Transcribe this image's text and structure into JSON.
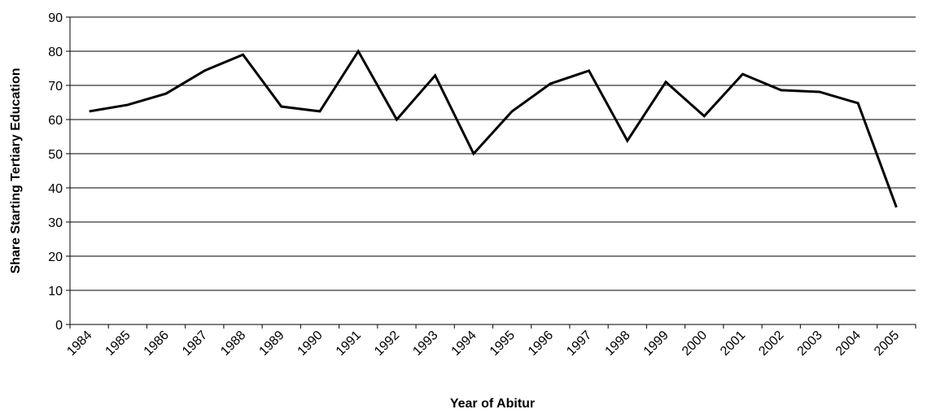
{
  "chart_data": {
    "type": "line",
    "x_label": "Year of Abitur",
    "y_label": "Share Starting Tertiary Education",
    "categories": [
      "1984",
      "1985",
      "1986",
      "1987",
      "1988",
      "1989",
      "1990",
      "1991",
      "1992",
      "1993",
      "1994",
      "1995",
      "1996",
      "1997",
      "1998",
      "1999",
      "2000",
      "2001",
      "2002",
      "2003",
      "2004",
      "2005"
    ],
    "series": [
      {
        "color": "#000000",
        "values": [
          62.4,
          64.3,
          67.6,
          74.3,
          79,
          63.8,
          62.4,
          80,
          60,
          72.9,
          50,
          62.4,
          70.5,
          74.3,
          53.8,
          71,
          61,
          73.3,
          68.6,
          68.1,
          64.8,
          34.3
        ]
      }
    ],
    "ylim": [
      0,
      90
    ],
    "yticks": [
      0,
      10,
      20,
      30,
      40,
      50,
      60,
      70,
      80,
      90
    ],
    "grid": true
  }
}
